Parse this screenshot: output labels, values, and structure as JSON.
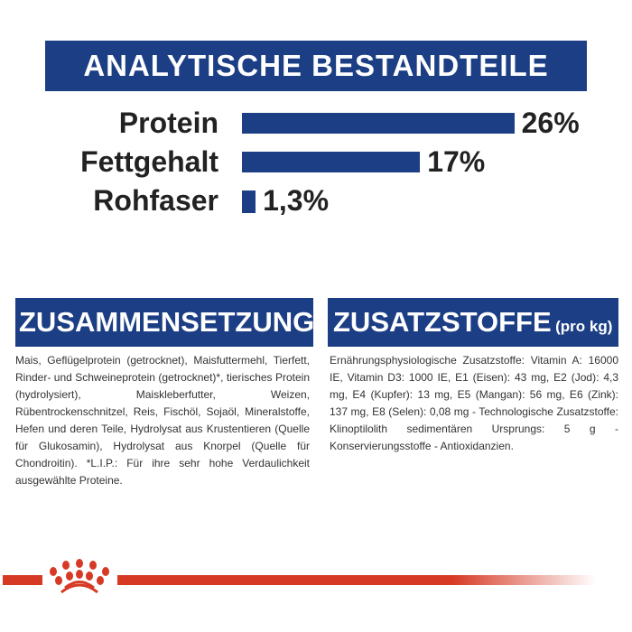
{
  "title": "ANALYTISCHE BESTANDTEILE",
  "nutrients": [
    {
      "label": "Protein",
      "value": 26,
      "display": "26%"
    },
    {
      "label": "Fettgehalt",
      "value": 17,
      "display": "17%"
    },
    {
      "label": "Rohfaser",
      "value": 1.3,
      "display": "1,3%"
    }
  ],
  "composition": {
    "heading": "ZUSAMMENSETZUNG",
    "text": "Mais, Geflügelprotein (getrocknet), Maisfuttermehl, Tierfett, Rinder- und Schweineprotein (getrocknet)*, tierisches Protein (hydrolysiert), Maiskleberfutter, Weizen, Rübentrockenschnitzel, Reis, Fischöl, Sojaöl, Mineralstoffe, Hefen und deren Teile, Hydrolysat aus Krustentieren (Quelle für Glukosamin), Hydrolysat aus Knorpel (Quelle für Chondroitin). *L.I.P.: Für ihre sehr hohe Verdaulichkeit ausgewählte Proteine."
  },
  "additives": {
    "heading": "ZUSATZSTOFFE",
    "unit": "(pro kg)",
    "text": "Ernährungsphysiologische Zusatzstoffe: Vitamin A: 16000 IE, Vitamin D3: 1000 IE, E1 (Eisen): 43 mg, E2 (Jod): 4,3 mg, E4 (Kupfer): 13 mg, E5 (Mangan): 56 mg, E6 (Zink): 137 mg, E8 (Selen): 0,08 mg - Technologische Zusatzstoffe: Klinoptilolith sedimentären Ursprungs: 5 g - Konservierungsstoffe - Antioxidanzien."
  },
  "colors": {
    "brand_blue": "#1c3e85",
    "brand_red": "#d63a25"
  },
  "logo": "royal-canin-crown"
}
